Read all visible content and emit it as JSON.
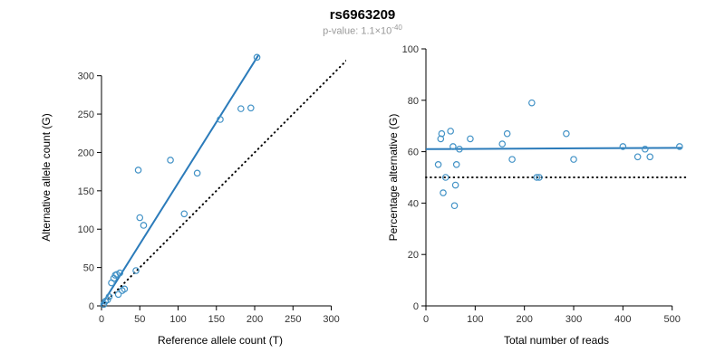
{
  "header": {
    "title": "rs6963209",
    "pvalue_base": "p-value: 1.1×10",
    "pvalue_exponent": "-40"
  },
  "chart_data": [
    {
      "type": "scatter",
      "name": "allele-counts",
      "xlabel": "Reference allele count (T)",
      "ylabel": "Alternative allele count (G)",
      "xdomain": [
        0,
        310
      ],
      "ydomain": [
        0,
        335
      ],
      "xticks": [
        0,
        50,
        100,
        150,
        200,
        250,
        300
      ],
      "yticks": [
        0,
        50,
        100,
        150,
        200,
        250,
        300
      ],
      "points": [
        [
          3,
          2
        ],
        [
          5,
          6
        ],
        [
          8,
          8
        ],
        [
          10,
          12
        ],
        [
          13,
          30
        ],
        [
          16,
          36
        ],
        [
          18,
          40
        ],
        [
          20,
          41
        ],
        [
          22,
          15
        ],
        [
          24,
          43
        ],
        [
          27,
          20
        ],
        [
          30,
          22
        ],
        [
          45,
          46
        ],
        [
          48,
          177
        ],
        [
          50,
          115
        ],
        [
          55,
          105
        ],
        [
          90,
          190
        ],
        [
          108,
          120
        ],
        [
          125,
          173
        ],
        [
          155,
          243
        ],
        [
          182,
          257
        ],
        [
          195,
          258
        ],
        [
          203,
          324
        ]
      ],
      "fit_line": {
        "x1": 0,
        "y1": 1,
        "x2": 205,
        "y2": 327
      },
      "dotted_line": {
        "x1": 0,
        "y1": 0,
        "x2": 330,
        "y2": 330
      },
      "point_color": "#4292c6",
      "line_color": "#2b7bba",
      "dotted_color": "#000000"
    },
    {
      "type": "scatter",
      "name": "percentage-alternative",
      "xlabel": "Total number of reads",
      "ylabel": "Percentage alternative (G)",
      "xdomain": [
        0,
        530
      ],
      "ydomain": [
        0,
        100
      ],
      "xticks": [
        0,
        100,
        200,
        300,
        400,
        500
      ],
      "yticks": [
        0,
        20,
        40,
        60,
        80,
        100
      ],
      "points": [
        [
          25,
          55
        ],
        [
          30,
          65
        ],
        [
          32,
          67
        ],
        [
          35,
          44
        ],
        [
          40,
          50
        ],
        [
          50,
          68
        ],
        [
          55,
          62
        ],
        [
          58,
          39
        ],
        [
          60,
          47
        ],
        [
          62,
          55
        ],
        [
          68,
          61
        ],
        [
          90,
          65
        ],
        [
          155,
          63
        ],
        [
          165,
          67
        ],
        [
          175,
          57
        ],
        [
          215,
          79
        ],
        [
          225,
          50
        ],
        [
          230,
          50
        ],
        [
          285,
          67
        ],
        [
          300,
          57
        ],
        [
          400,
          62
        ],
        [
          430,
          58
        ],
        [
          445,
          61
        ],
        [
          455,
          58
        ],
        [
          515,
          62
        ]
      ],
      "fit_line": {
        "x1": 0,
        "y1": 61,
        "x2": 520,
        "y2": 61.5
      },
      "dotted_line": {
        "x1": 0,
        "y1": 50,
        "x2": 530,
        "y2": 50
      },
      "point_color": "#4292c6",
      "line_color": "#2b7bba",
      "dotted_color": "#000000"
    }
  ]
}
